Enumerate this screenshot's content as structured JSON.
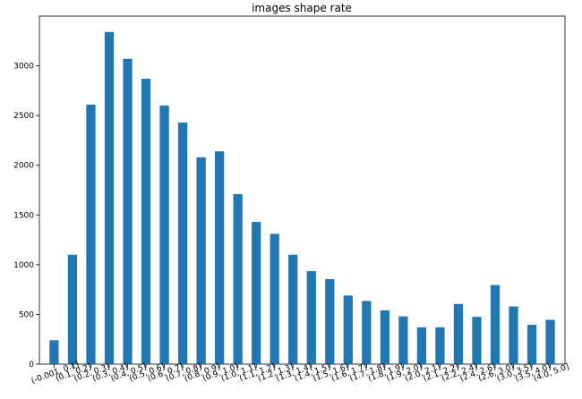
{
  "chart_data": {
    "type": "bar",
    "title": "images shape rate",
    "xlabel": "",
    "ylabel": "",
    "ylim": [
      0,
      3500
    ],
    "yticks": [
      0,
      500,
      1000,
      1500,
      2000,
      2500,
      3000
    ],
    "grid": false,
    "bar_color": "#1f77b4",
    "categories": [
      "(-0.001, 0.1]",
      "(0.1, 0.2]",
      "(0.2, 0.3]",
      "(0.3, 0.4]",
      "(0.4, 0.5]",
      "(0.5, 0.6]",
      "(0.6, 0.7]",
      "(0.7, 0.8]",
      "(0.8, 0.9]",
      "(0.9, 1.0]",
      "(1.0, 1.1]",
      "(1.1, 1.2]",
      "(1.2, 1.3]",
      "(1.3, 1.4]",
      "(1.4, 1.5]",
      "(1.5, 1.6]",
      "(1.6, 1.7]",
      "(1.7, 1.8]",
      "(1.8, 1.9]",
      "(1.9, 2.0]",
      "(2.0, 2.1]",
      "(2.1, 2.2]",
      "(2.2, 2.4]",
      "(2.4, 2.6]",
      "(2.6, 3.0]",
      "(3.0, 3.5]",
      "(3.5, 4.0]",
      "(4.0, 5.0]"
    ],
    "values": [
      240,
      1100,
      2610,
      3340,
      3070,
      2870,
      2600,
      2430,
      2080,
      2140,
      1710,
      1430,
      1310,
      1100,
      935,
      855,
      690,
      635,
      540,
      480,
      370,
      370,
      605,
      475,
      795,
      580,
      395,
      445
    ]
  }
}
